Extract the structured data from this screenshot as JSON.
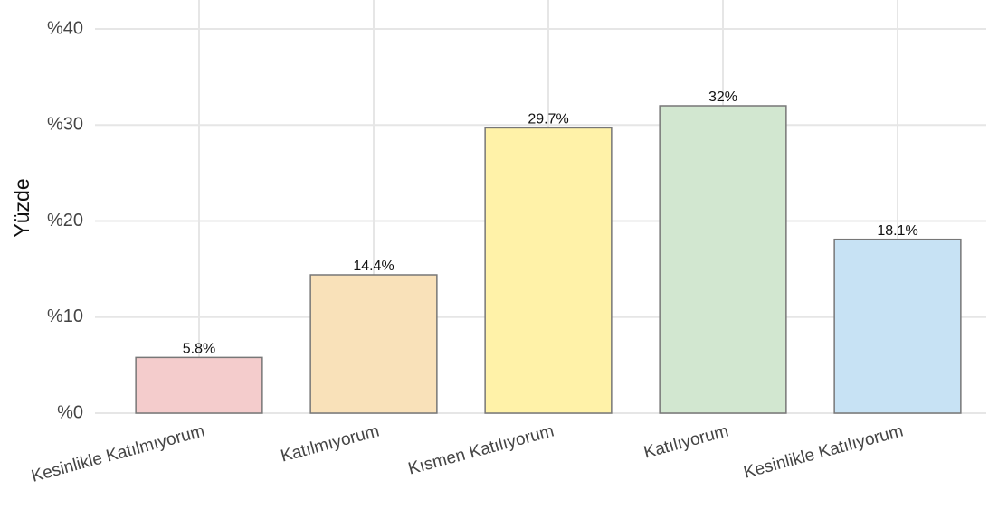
{
  "chart_data": {
    "type": "bar",
    "y_label": "Yüzde",
    "categories": [
      "Kesinlikle Katılmıyorum",
      "Katılmıyorum",
      "Kısmen Katılıyorum",
      "Katılıyorum",
      "Kesinlikle Katılıyorum"
    ],
    "values": [
      5.8,
      14.4,
      29.7,
      32,
      18.1
    ],
    "value_labels": [
      "5.8%",
      "14.4%",
      "29.7%",
      "32%",
      "18.1%"
    ],
    "colors": [
      "#f4cccc",
      "#f9e1b9",
      "#fff2a8",
      "#d2e7d0",
      "#c7e2f4"
    ],
    "ylim": [
      0,
      40
    ],
    "yticks": [
      {
        "value": 0,
        "label": "%0"
      },
      {
        "value": 10,
        "label": "%10"
      },
      {
        "value": 20,
        "label": "%20"
      },
      {
        "value": 30,
        "label": "%30"
      },
      {
        "value": 40,
        "label": "%40"
      }
    ],
    "grid": true
  }
}
